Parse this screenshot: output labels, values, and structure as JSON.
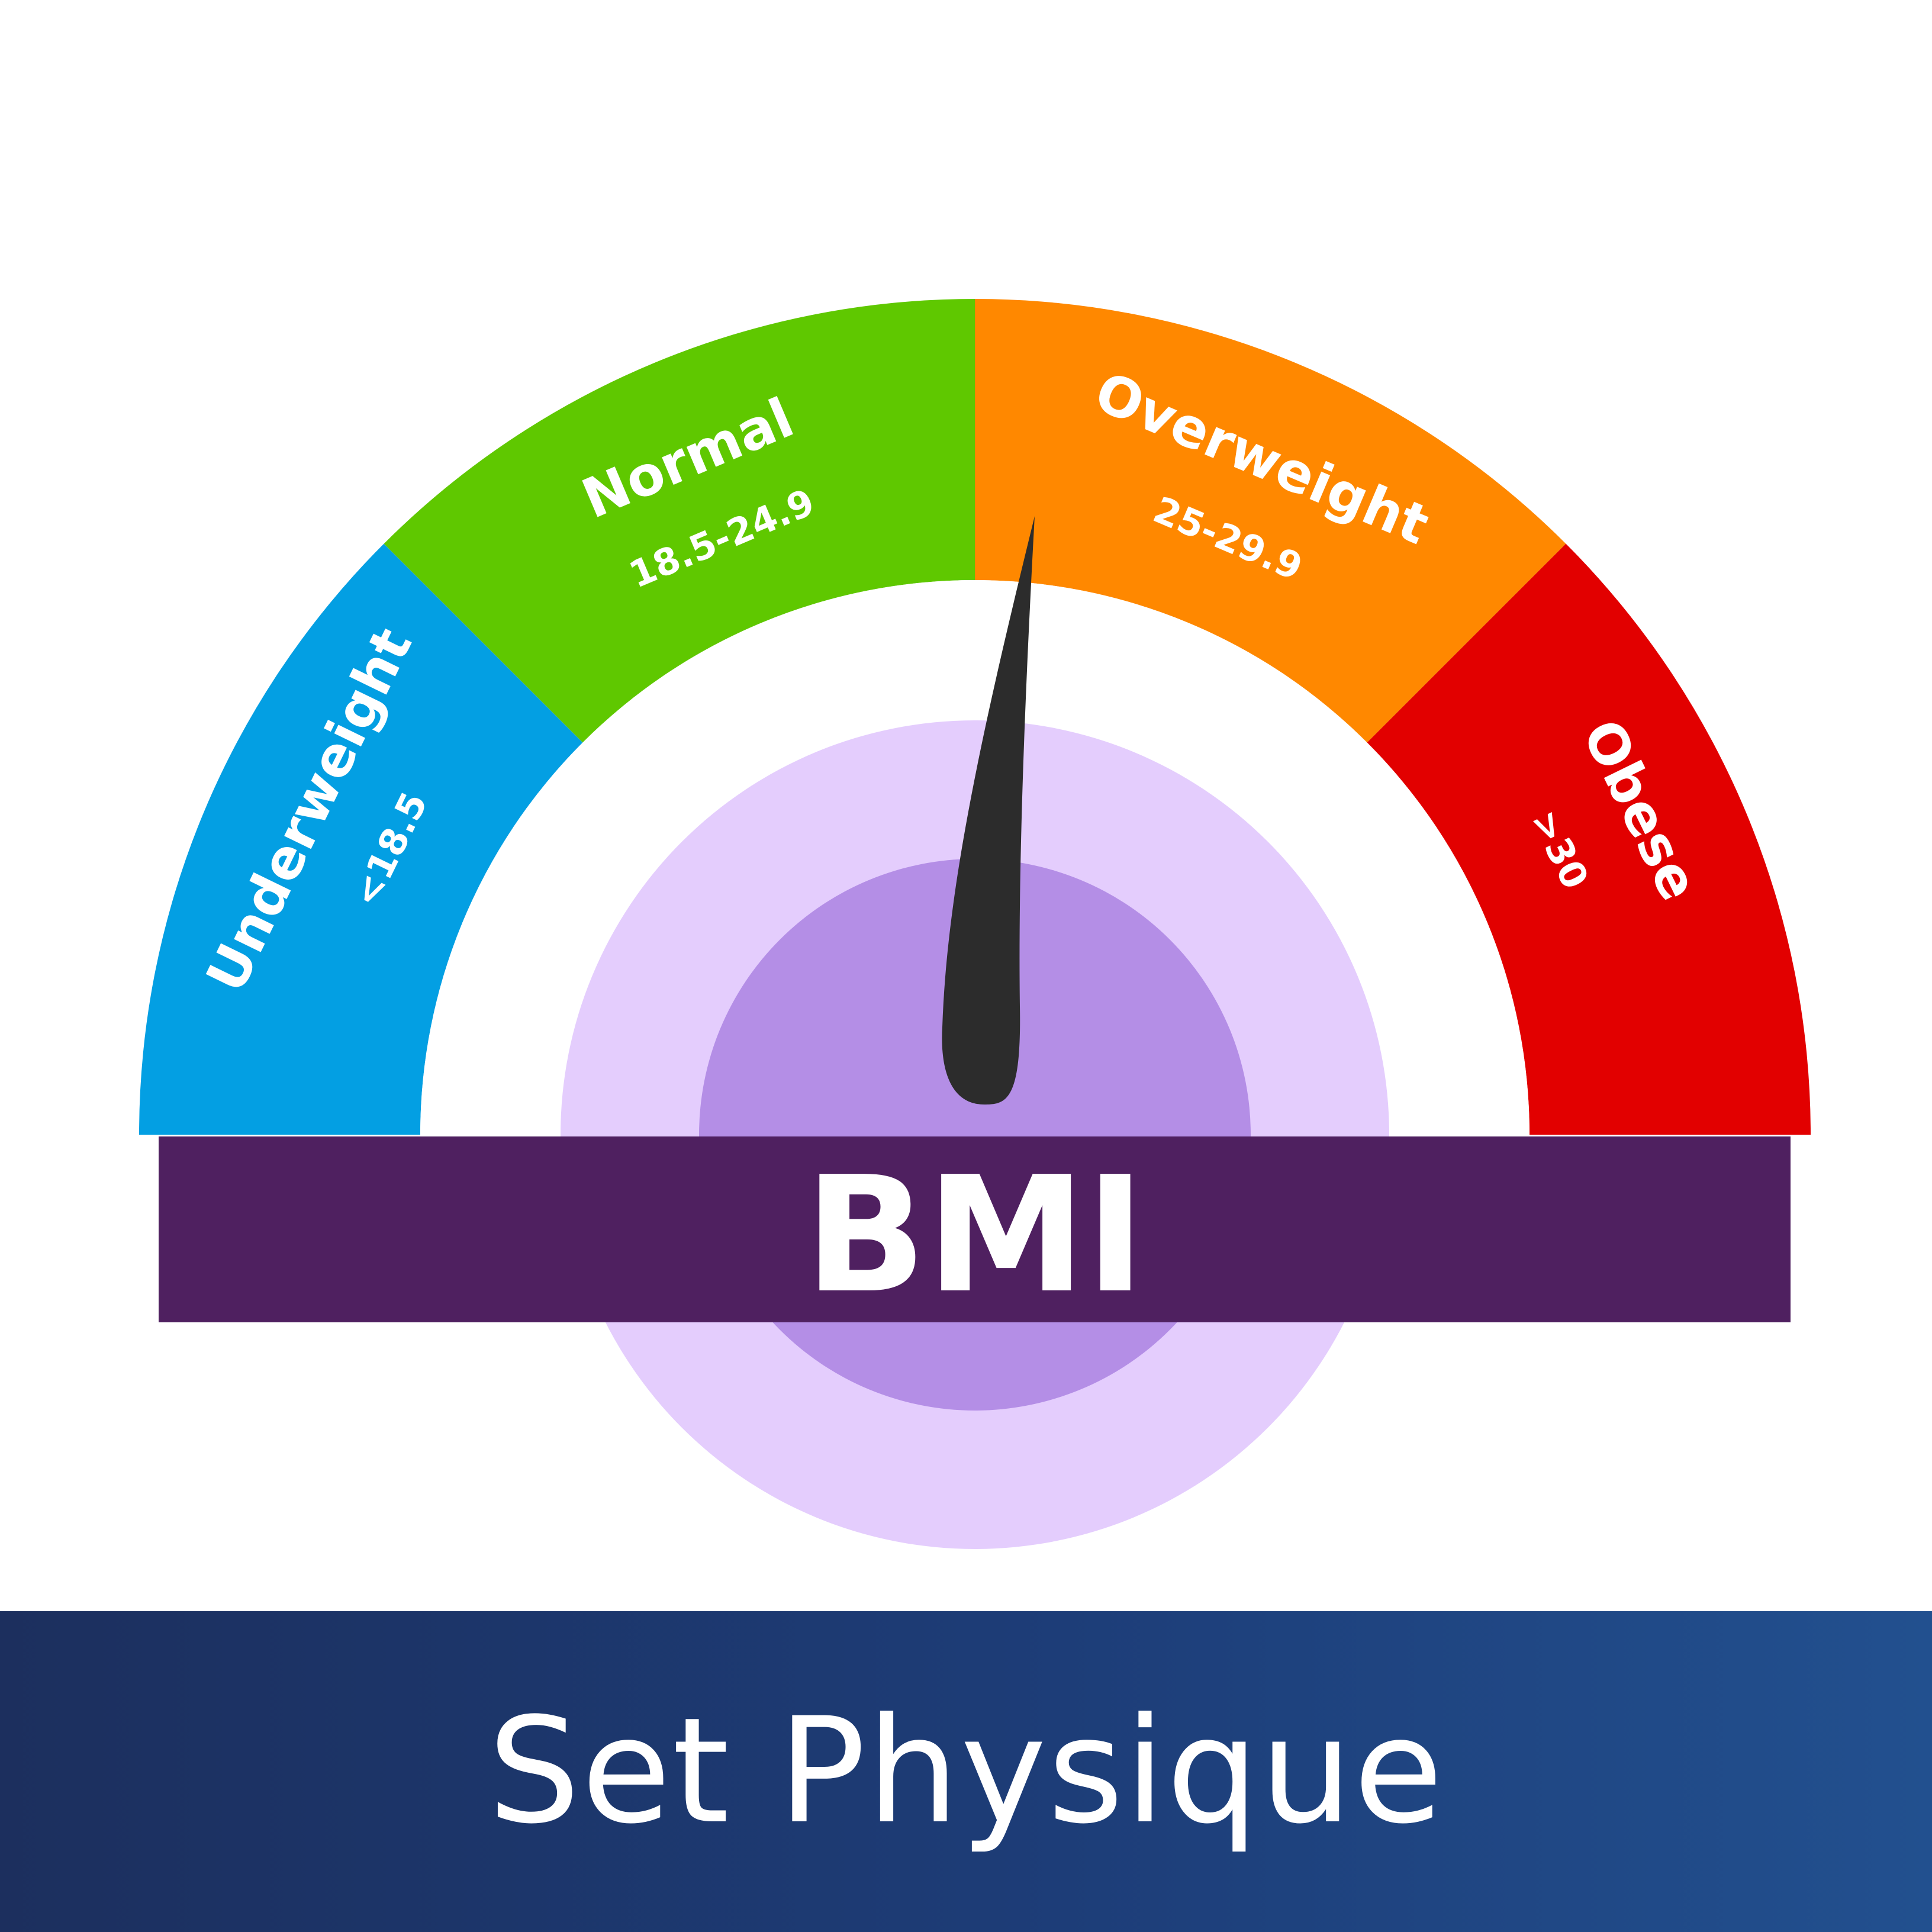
{
  "gauge": {
    "title": "BMI",
    "segments": [
      {
        "name": "Underweight",
        "range": "<18.5",
        "color": "#039fe3"
      },
      {
        "name": "Normal",
        "range": "18.5-24.9",
        "color": "#5fc800"
      },
      {
        "name": "Overweight",
        "range": "25-29.9",
        "color": "#ff8800"
      },
      {
        "name": "Obese",
        "range": ">30",
        "color": "#e20000"
      }
    ],
    "band_color": "#4f2060",
    "inner_ring_color": "#e4cdfd",
    "inner_core_color": "#b48ee6",
    "needle_color": "#2c2c2c"
  },
  "footer": {
    "title": "Set Physique"
  }
}
